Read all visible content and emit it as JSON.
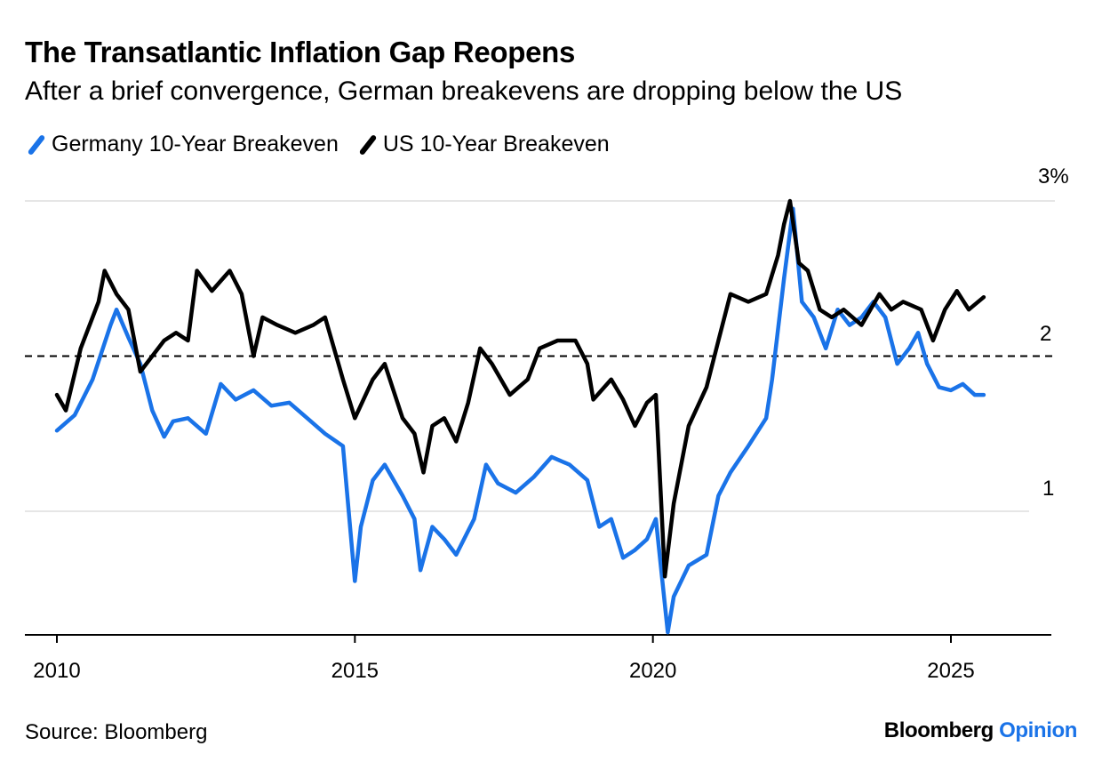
{
  "title": "The Transatlantic Inflation Gap Reopens",
  "subtitle": "After a brief convergence, German breakevens are dropping below the US",
  "source": "Source: Bloomberg",
  "brand": {
    "part1": "Bloomberg",
    "part2": "Opinion"
  },
  "chart_data": {
    "type": "line",
    "title": "The Transatlantic Inflation Gap Reopens",
    "subtitle": "After a brief convergence, German breakevens are dropping below the US",
    "xlim": [
      2010,
      2026.8
    ],
    "ylim": [
      0.2,
      3.0
    ],
    "x_ticks": [
      2010,
      2015,
      2020,
      2025
    ],
    "x_tick_labels": [
      "2010",
      "2015",
      "2020",
      "2025"
    ],
    "y_ticks": [
      1,
      2,
      3
    ],
    "y_tick_labels": [
      "1",
      "2",
      "3%"
    ],
    "y_axis_side": "right",
    "reference_line": {
      "y": 2.0,
      "style": "dashed"
    },
    "grid": "horizontal",
    "legend_position": "top-left",
    "series": [
      {
        "name": "Germany 10-Year Breakeven",
        "color": "#1a73e8",
        "points": [
          [
            2010.0,
            1.52
          ],
          [
            2010.3,
            1.62
          ],
          [
            2010.6,
            1.85
          ],
          [
            2010.9,
            2.2
          ],
          [
            2011.0,
            2.3
          ],
          [
            2011.2,
            2.12
          ],
          [
            2011.4,
            1.95
          ],
          [
            2011.6,
            1.65
          ],
          [
            2011.8,
            1.48
          ],
          [
            2011.95,
            1.58
          ],
          [
            2012.2,
            1.6
          ],
          [
            2012.5,
            1.5
          ],
          [
            2012.75,
            1.82
          ],
          [
            2013.0,
            1.72
          ],
          [
            2013.3,
            1.78
          ],
          [
            2013.6,
            1.68
          ],
          [
            2013.9,
            1.7
          ],
          [
            2014.2,
            1.6
          ],
          [
            2014.5,
            1.5
          ],
          [
            2014.8,
            1.42
          ],
          [
            2015.0,
            0.55
          ],
          [
            2015.1,
            0.9
          ],
          [
            2015.3,
            1.2
          ],
          [
            2015.5,
            1.3
          ],
          [
            2015.8,
            1.1
          ],
          [
            2016.0,
            0.95
          ],
          [
            2016.1,
            0.62
          ],
          [
            2016.3,
            0.9
          ],
          [
            2016.5,
            0.82
          ],
          [
            2016.7,
            0.72
          ],
          [
            2017.0,
            0.95
          ],
          [
            2017.2,
            1.3
          ],
          [
            2017.4,
            1.18
          ],
          [
            2017.7,
            1.12
          ],
          [
            2018.0,
            1.22
          ],
          [
            2018.3,
            1.35
          ],
          [
            2018.6,
            1.3
          ],
          [
            2018.9,
            1.2
          ],
          [
            2019.1,
            0.9
          ],
          [
            2019.3,
            0.95
          ],
          [
            2019.5,
            0.7
          ],
          [
            2019.7,
            0.75
          ],
          [
            2019.9,
            0.82
          ],
          [
            2020.05,
            0.95
          ],
          [
            2020.25,
            0.22
          ],
          [
            2020.35,
            0.45
          ],
          [
            2020.6,
            0.65
          ],
          [
            2020.9,
            0.72
          ],
          [
            2021.1,
            1.1
          ],
          [
            2021.3,
            1.25
          ],
          [
            2021.6,
            1.42
          ],
          [
            2021.9,
            1.6
          ],
          [
            2022.0,
            1.85
          ],
          [
            2022.2,
            2.5
          ],
          [
            2022.35,
            2.95
          ],
          [
            2022.5,
            2.35
          ],
          [
            2022.7,
            2.25
          ],
          [
            2022.9,
            2.05
          ],
          [
            2023.1,
            2.3
          ],
          [
            2023.3,
            2.2
          ],
          [
            2023.5,
            2.25
          ],
          [
            2023.7,
            2.35
          ],
          [
            2023.9,
            2.25
          ],
          [
            2024.1,
            1.95
          ],
          [
            2024.3,
            2.05
          ],
          [
            2024.45,
            2.15
          ],
          [
            2024.6,
            1.95
          ],
          [
            2024.8,
            1.8
          ],
          [
            2025.0,
            1.78
          ],
          [
            2025.2,
            1.82
          ],
          [
            2025.4,
            1.75
          ],
          [
            2025.55,
            1.75
          ]
        ]
      },
      {
        "name": "US 10-Year Breakeven",
        "color": "#000000",
        "points": [
          [
            2010.0,
            1.75
          ],
          [
            2010.15,
            1.65
          ],
          [
            2010.4,
            2.05
          ],
          [
            2010.7,
            2.35
          ],
          [
            2010.8,
            2.55
          ],
          [
            2011.0,
            2.4
          ],
          [
            2011.2,
            2.3
          ],
          [
            2011.4,
            1.9
          ],
          [
            2011.6,
            2.0
          ],
          [
            2011.8,
            2.1
          ],
          [
            2012.0,
            2.15
          ],
          [
            2012.2,
            2.1
          ],
          [
            2012.35,
            2.55
          ],
          [
            2012.6,
            2.42
          ],
          [
            2012.9,
            2.55
          ],
          [
            2013.1,
            2.4
          ],
          [
            2013.3,
            2.0
          ],
          [
            2013.45,
            2.25
          ],
          [
            2013.7,
            2.2
          ],
          [
            2014.0,
            2.15
          ],
          [
            2014.3,
            2.2
          ],
          [
            2014.5,
            2.25
          ],
          [
            2014.8,
            1.85
          ],
          [
            2015.0,
            1.6
          ],
          [
            2015.3,
            1.85
          ],
          [
            2015.5,
            1.95
          ],
          [
            2015.8,
            1.6
          ],
          [
            2016.0,
            1.5
          ],
          [
            2016.15,
            1.25
          ],
          [
            2016.3,
            1.55
          ],
          [
            2016.5,
            1.6
          ],
          [
            2016.7,
            1.45
          ],
          [
            2016.9,
            1.7
          ],
          [
            2017.1,
            2.05
          ],
          [
            2017.3,
            1.95
          ],
          [
            2017.6,
            1.75
          ],
          [
            2017.9,
            1.85
          ],
          [
            2018.1,
            2.05
          ],
          [
            2018.4,
            2.1
          ],
          [
            2018.7,
            2.1
          ],
          [
            2018.9,
            1.95
          ],
          [
            2019.0,
            1.72
          ],
          [
            2019.3,
            1.85
          ],
          [
            2019.5,
            1.72
          ],
          [
            2019.7,
            1.55
          ],
          [
            2019.9,
            1.7
          ],
          [
            2020.05,
            1.75
          ],
          [
            2020.2,
            0.58
          ],
          [
            2020.35,
            1.05
          ],
          [
            2020.6,
            1.55
          ],
          [
            2020.9,
            1.8
          ],
          [
            2021.1,
            2.1
          ],
          [
            2021.3,
            2.4
          ],
          [
            2021.6,
            2.35
          ],
          [
            2021.9,
            2.4
          ],
          [
            2022.1,
            2.65
          ],
          [
            2022.2,
            2.85
          ],
          [
            2022.3,
            3.0
          ],
          [
            2022.45,
            2.6
          ],
          [
            2022.6,
            2.55
          ],
          [
            2022.8,
            2.3
          ],
          [
            2023.0,
            2.25
          ],
          [
            2023.2,
            2.3
          ],
          [
            2023.5,
            2.2
          ],
          [
            2023.8,
            2.4
          ],
          [
            2024.0,
            2.3
          ],
          [
            2024.2,
            2.35
          ],
          [
            2024.5,
            2.3
          ],
          [
            2024.7,
            2.1
          ],
          [
            2024.9,
            2.3
          ],
          [
            2025.1,
            2.42
          ],
          [
            2025.3,
            2.3
          ],
          [
            2025.55,
            2.38
          ]
        ]
      }
    ]
  }
}
